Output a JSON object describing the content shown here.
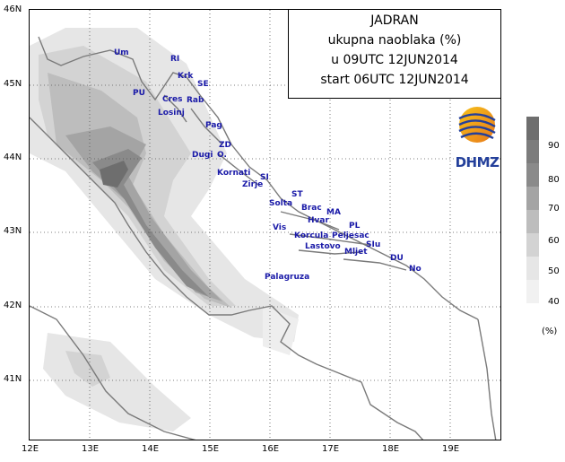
{
  "title": {
    "line1": "JADRAN",
    "line2": "ukupna naoblaka (%)",
    "line3": "u 09UTC 12JUN2014",
    "line4": "start 06UTC 12JUN2014"
  },
  "logo": {
    "text": "DHMZ"
  },
  "legend": {
    "unit": "(%)",
    "levels": [
      {
        "label": "90",
        "color": "#6e6e6e"
      },
      {
        "label": "80",
        "color": "#8a8a8a"
      },
      {
        "label": "70",
        "color": "#a4a4a4"
      },
      {
        "label": "60",
        "color": "#bdbdbd"
      },
      {
        "label": "50",
        "color": "#d3d3d3"
      },
      {
        "label": "40",
        "color": "#e6e6e6"
      }
    ]
  },
  "axes": {
    "lon_labels": [
      "12E",
      "13E",
      "14E",
      "15E",
      "16E",
      "17E",
      "18E",
      "19E"
    ],
    "lat_labels": [
      "46N",
      "45N",
      "44N",
      "43N",
      "42N",
      "41N"
    ]
  },
  "stations": [
    "Um",
    "RI",
    "Krk",
    "SE",
    "PU",
    "Cres",
    "Rab",
    "Losinj",
    "Pag",
    "ZD",
    "Dugi",
    "O.",
    "Kornati",
    "SI",
    "Zirje",
    "ST",
    "Solta",
    "Brac",
    "MA",
    "Hvar",
    "PL",
    "Vis",
    "Korcula",
    "Peljesac",
    "Lastovo",
    "SIu",
    "Mljet",
    "DU",
    "Palagruza",
    "No"
  ],
  "colors": {
    "coast": "#7a7a7a",
    "station_text": "#1a1aa8",
    "brand": "#24409b"
  }
}
